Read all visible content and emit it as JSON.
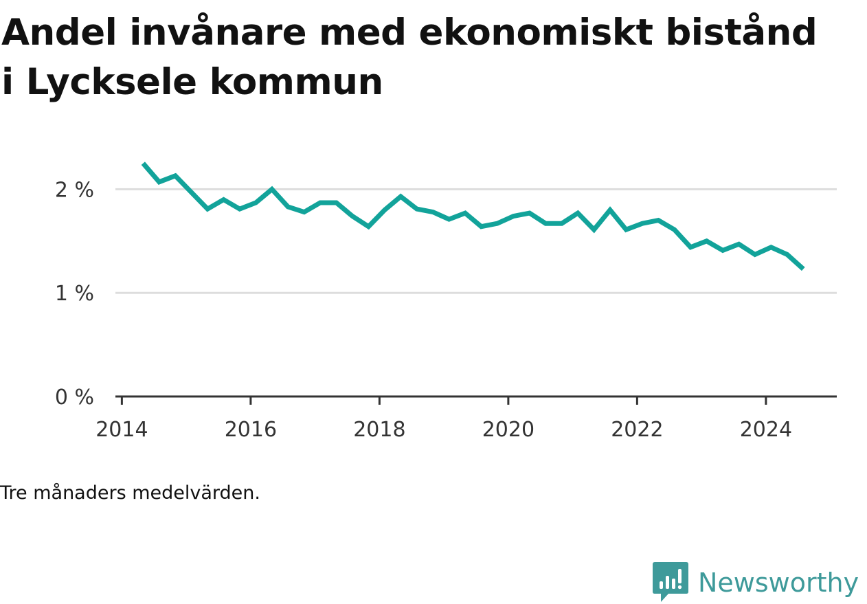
{
  "title": "Andel invånare med ekonomiskt bistånd i Lycksele kommun",
  "note": "Tre månaders medelvärden.",
  "brand": {
    "name": "Newsworthy",
    "icon": "newsworthy-logo-icon",
    "color": "#3e9a9a"
  },
  "colors": {
    "line": "#12a39a",
    "grid": "#dddddd",
    "axis": "#333333"
  },
  "chart_data": {
    "type": "line",
    "title": "Andel invånare med ekonomiskt bistånd i Lycksele kommun",
    "xlabel": "",
    "ylabel": "",
    "xlim": [
      2013.9,
      2025.1
    ],
    "ylim": [
      0,
      2.5
    ],
    "x_ticks": [
      2014,
      2016,
      2018,
      2020,
      2022,
      2024
    ],
    "x_tick_labels": [
      "2014",
      "2016",
      "2018",
      "2020",
      "2022",
      "2024"
    ],
    "y_ticks": [
      0,
      1,
      2
    ],
    "y_tick_labels": [
      "0 %",
      "1 %",
      "2 %"
    ],
    "grid": true,
    "legend": "none",
    "series": [
      {
        "x": [
          2014.33,
          2014.58,
          2014.83,
          2015.08,
          2015.33,
          2015.58,
          2015.83,
          2016.08,
          2016.33,
          2016.58,
          2016.83,
          2017.08,
          2017.33,
          2017.58,
          2017.83,
          2018.08,
          2018.33,
          2018.58,
          2018.83,
          2019.08,
          2019.33,
          2019.58,
          2019.83,
          2020.08,
          2020.33,
          2020.58,
          2020.83,
          2021.08,
          2021.33,
          2021.58,
          2021.83,
          2022.08,
          2022.33,
          2022.58,
          2022.83,
          2023.08,
          2023.33,
          2023.58,
          2023.83,
          2024.08,
          2024.33,
          2024.58
        ],
        "values": [
          2.25,
          2.07,
          2.13,
          1.97,
          1.81,
          1.9,
          1.81,
          1.87,
          2.0,
          1.83,
          1.78,
          1.87,
          1.87,
          1.74,
          1.64,
          1.8,
          1.93,
          1.81,
          1.78,
          1.71,
          1.77,
          1.64,
          1.67,
          1.74,
          1.77,
          1.67,
          1.67,
          1.77,
          1.61,
          1.8,
          1.61,
          1.67,
          1.7,
          1.61,
          1.44,
          1.5,
          1.41,
          1.47,
          1.37,
          1.44,
          1.37,
          1.23
        ]
      }
    ]
  }
}
